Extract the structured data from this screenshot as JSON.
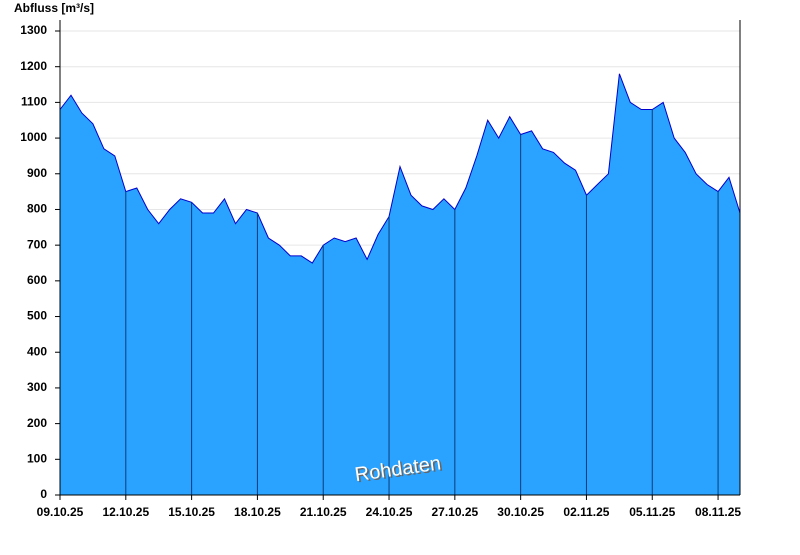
{
  "chart_data": {
    "type": "area",
    "title": "Abfluss [m³/s]",
    "annotation": "Rohdaten",
    "categories": [
      "09.10.25",
      null,
      null,
      null,
      null,
      null,
      "12.10.25",
      null,
      null,
      null,
      null,
      null,
      "15.10.25",
      null,
      null,
      null,
      null,
      null,
      "18.10.25",
      null,
      null,
      null,
      null,
      null,
      "21.10.25",
      null,
      null,
      null,
      null,
      null,
      "24.10.25",
      null,
      null,
      null,
      null,
      null,
      "27.10.25",
      null,
      null,
      null,
      null,
      null,
      "30.10.25",
      null,
      null,
      null,
      null,
      null,
      "02.11.25",
      null,
      null,
      null,
      null,
      null,
      "05.11.25",
      null,
      null,
      null,
      null,
      null,
      "08.11.25",
      null,
      null
    ],
    "series": [
      {
        "color": "#29a3ff",
        "line_color": "#0000cc",
        "values": [
          1080,
          1120,
          1070,
          1040,
          970,
          950,
          850,
          860,
          800,
          760,
          800,
          830,
          820,
          790,
          790,
          830,
          760,
          800,
          790,
          720,
          700,
          670,
          670,
          650,
          700,
          720,
          710,
          720,
          660,
          730,
          780,
          920,
          840,
          810,
          800,
          830,
          800,
          860,
          950,
          1050,
          1000,
          1060,
          1010,
          1020,
          970,
          960,
          930,
          910,
          840,
          870,
          900,
          1180,
          1100,
          1080,
          1080,
          1100,
          1000,
          960,
          900,
          870,
          850,
          890,
          790
        ]
      }
    ],
    "ylim": [
      0,
      1300
    ],
    "yticks": [
      0,
      100,
      200,
      300,
      400,
      500,
      600,
      700,
      800,
      900,
      1000,
      1100,
      1200,
      1300
    ],
    "grid": true
  }
}
